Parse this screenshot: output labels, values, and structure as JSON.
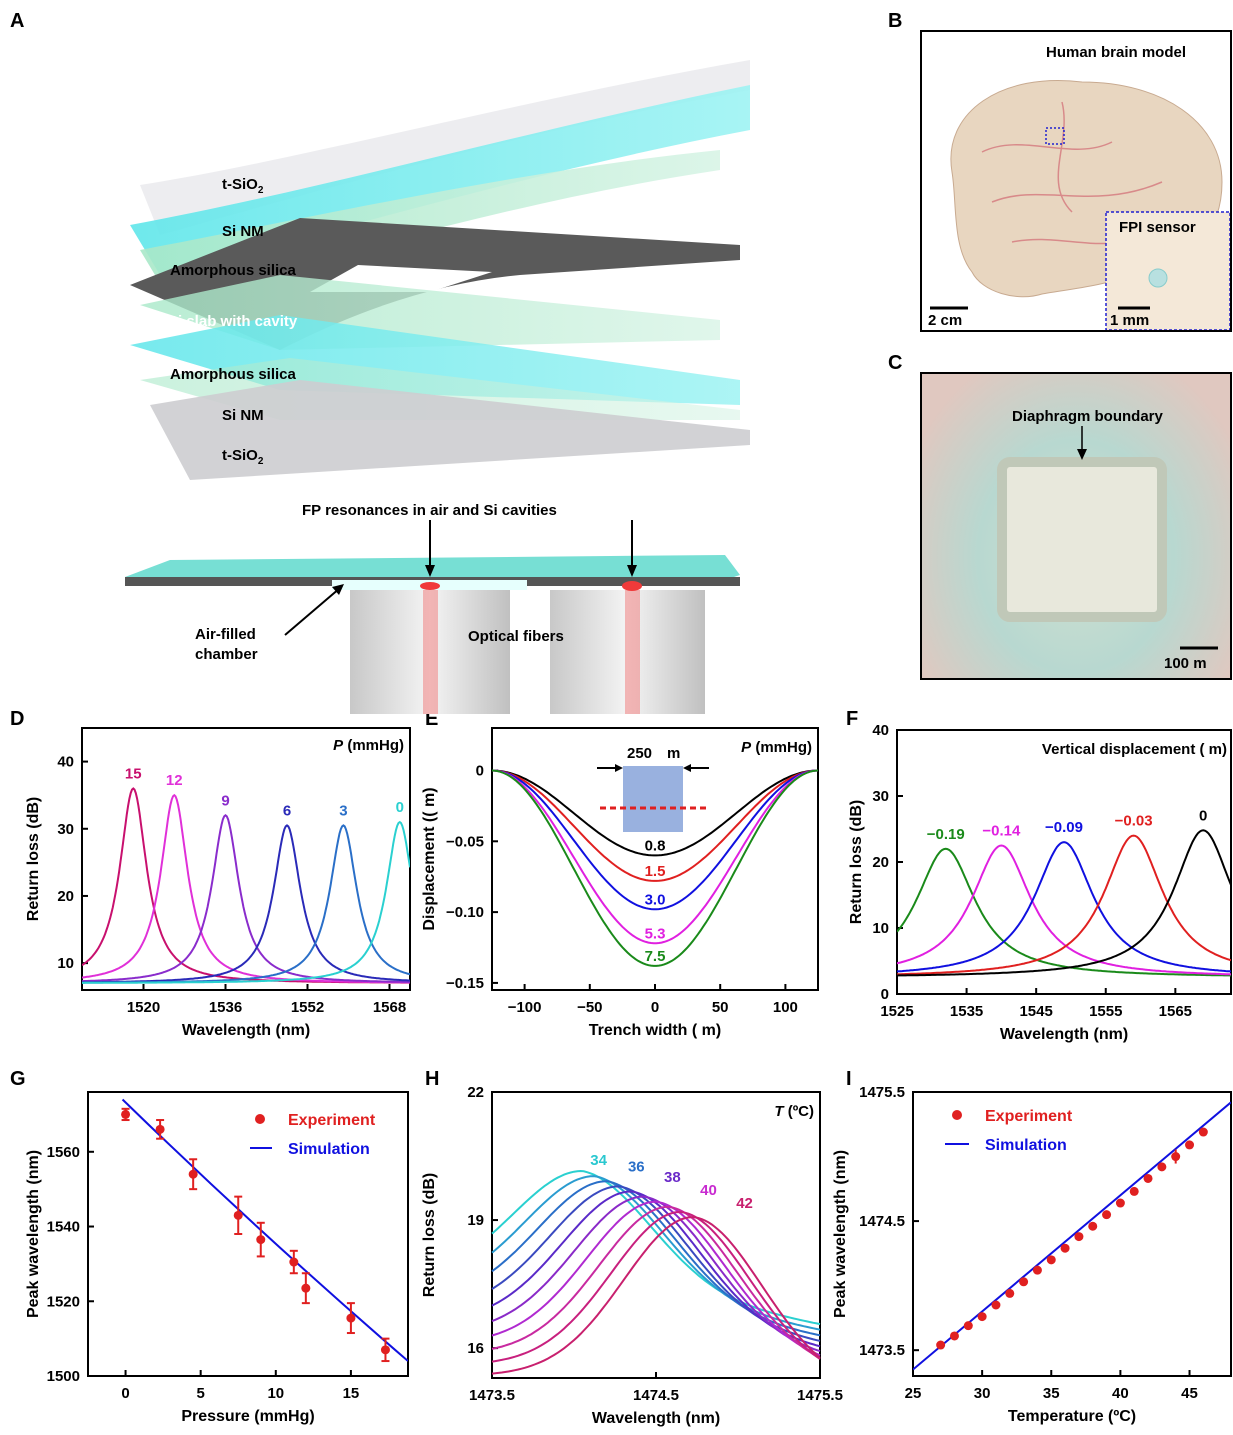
{
  "panels": [
    "A",
    "B",
    "C",
    "D",
    "E",
    "F",
    "G",
    "H",
    "I"
  ],
  "panel_a": {
    "layers": [
      "t-SiO",
      "Si NM",
      "Amorphous silica",
      "Si slab with cavity",
      "Amorphous silica",
      "Si NM",
      "t-SiO"
    ],
    "subscript": "2",
    "fp_label": "FP resonances in air and Si cavities",
    "air_chamber_1": "Air-filled",
    "air_chamber_2": "chamber",
    "fibers": "Optical fibers"
  },
  "panel_b": {
    "title": "Human brain model",
    "inset": "FPI sensor",
    "scale1": "2 cm",
    "scale2": "1 mm"
  },
  "panel_c": {
    "boundary": "Diaphragm boundary",
    "scale": "100   m"
  },
  "chart_data": [
    {
      "panel": "D",
      "type": "line",
      "xlabel": "Wavelength (nm)",
      "ylabel": "Return loss (dB)",
      "xticks": [
        "1520",
        "1536",
        "1552",
        "1568"
      ],
      "yticks": [
        "10",
        "20",
        "30",
        "40"
      ],
      "xlim": [
        1508,
        1572
      ],
      "ylim": [
        6,
        45
      ],
      "legend_title_italic": "P",
      "legend_title_rest": " (mmHg)",
      "series": [
        {
          "name": "15",
          "peak_x": 1518,
          "peak_y": 36,
          "color": "#c8106e"
        },
        {
          "name": "12",
          "peak_x": 1526,
          "peak_y": 35,
          "color": "#e030d8"
        },
        {
          "name": "9",
          "peak_x": 1536,
          "peak_y": 32,
          "color": "#8a2ccc"
        },
        {
          "name": "6",
          "peak_x": 1548,
          "peak_y": 30.5,
          "color": "#2a2ab8"
        },
        {
          "name": "3",
          "peak_x": 1559,
          "peak_y": 30.5,
          "color": "#2a6fc8"
        },
        {
          "name": "0",
          "peak_x": 1570,
          "peak_y": 31,
          "color": "#2ad0d0"
        }
      ]
    },
    {
      "panel": "E",
      "type": "line",
      "xlabel": "Trench width (  m)",
      "ylabel": "Displacement ((  m)",
      "xticks": [
        "−100",
        "−50",
        "0",
        "50",
        "100"
      ],
      "yticks": [
        "0",
        "−0.05",
        "−0.10",
        "−0.15"
      ],
      "xlim": [
        -125,
        125
      ],
      "ylim": [
        -0.155,
        0.03
      ],
      "legend_title_italic": "P",
      "legend_title_rest": " (mmHg)",
      "inset_width": "250",
      "inset_unit": "m",
      "series": [
        {
          "name": "0.8",
          "min": -0.06,
          "color": "#000000"
        },
        {
          "name": "1.5",
          "min": -0.078,
          "color": "#e02020"
        },
        {
          "name": "3.0",
          "min": -0.098,
          "color": "#1010e0"
        },
        {
          "name": "5.3",
          "min": -0.122,
          "color": "#e020e0"
        },
        {
          "name": "7.5",
          "min": -0.138,
          "color": "#1a8a1a"
        }
      ]
    },
    {
      "panel": "F",
      "type": "line",
      "xlabel": "Wavelength (nm)",
      "ylabel": "Return loss (dB)",
      "xticks": [
        "1525",
        "1535",
        "1545",
        "1555",
        "1565"
      ],
      "yticks": [
        "0",
        "10",
        "20",
        "30",
        "40"
      ],
      "xlim": [
        1525,
        1573
      ],
      "ylim": [
        0,
        40
      ],
      "legend_title": "Vertical displacement (  m)",
      "series": [
        {
          "name": "−0.19",
          "peak_x": 1532,
          "peak_y": 22,
          "color": "#1a8a1a"
        },
        {
          "name": "−0.14",
          "peak_x": 1540,
          "peak_y": 22.5,
          "color": "#e020e0"
        },
        {
          "name": "−0.09",
          "peak_x": 1549,
          "peak_y": 23,
          "color": "#1010e0"
        },
        {
          "name": "−0.03",
          "peak_x": 1559,
          "peak_y": 24,
          "color": "#e02020"
        },
        {
          "name": "0",
          "peak_x": 1569,
          "peak_y": 24.8,
          "color": "#000000"
        }
      ]
    },
    {
      "panel": "G",
      "type": "scatter",
      "xlabel": "Pressure (mmHg)",
      "ylabel": "Peak wavelength (nm)",
      "xticks": [
        "0",
        "5",
        "10",
        "15"
      ],
      "yticks": [
        "1500",
        "1520",
        "1540",
        "1560"
      ],
      "xlim": [
        -2.5,
        18.8
      ],
      "ylim": [
        1500,
        1576
      ],
      "legend": [
        "Experiment",
        "Simulation"
      ],
      "experiment": [
        {
          "x": 0,
          "y": 1570,
          "err": 1.5
        },
        {
          "x": 2.3,
          "y": 1566,
          "err": 2.5
        },
        {
          "x": 4.5,
          "y": 1554,
          "err": 4
        },
        {
          "x": 7.5,
          "y": 1543,
          "err": 5
        },
        {
          "x": 9,
          "y": 1536.5,
          "err": 4.5
        },
        {
          "x": 11.2,
          "y": 1530.5,
          "err": 3
        },
        {
          "x": 12,
          "y": 1523.5,
          "err": 4
        },
        {
          "x": 15,
          "y": 1515.5,
          "err": 4
        },
        {
          "x": 17.3,
          "y": 1507,
          "err": 3
        }
      ],
      "simulation": [
        [
          -0.2,
          1574
        ],
        [
          18.8,
          1504
        ]
      ]
    },
    {
      "panel": "H",
      "type": "line",
      "xlabel": "Wavelength (nm)",
      "ylabel": "Return loss (dB)",
      "xticks": [
        "1473.5",
        "1474.5",
        "1475.5"
      ],
      "yticks": [
        "16",
        "19",
        "22"
      ],
      "xlim": [
        1473.5,
        1475.5
      ],
      "ylim": [
        15.3,
        22
      ],
      "legend_title_italic": "T",
      "legend_title_rest": " (ºC)",
      "labels": [
        {
          "name": "34",
          "color": "#2ac8d0"
        },
        {
          "name": "36",
          "color": "#2a6fc8"
        },
        {
          "name": "38",
          "color": "#6a2ac8"
        },
        {
          "name": "40",
          "color": "#c82ad0"
        },
        {
          "name": "42",
          "color": "#c8206e"
        }
      ]
    },
    {
      "panel": "I",
      "type": "scatter",
      "xlabel": "Temperature (ºC)",
      "ylabel": "Peak wavelength (nm)",
      "xticks": [
        "25",
        "30",
        "35",
        "40",
        "45"
      ],
      "yticks": [
        "1473.5",
        "1474.5",
        "1475.5"
      ],
      "xlim": [
        25,
        48
      ],
      "ylim": [
        1473.3,
        1475.5
      ],
      "legend": [
        "Experiment",
        "Simulation"
      ],
      "experiment_x": [
        27,
        28,
        29,
        30,
        31,
        32,
        33,
        34,
        35,
        36,
        37,
        38,
        39,
        40,
        41,
        42,
        43,
        44,
        45,
        46
      ],
      "experiment_y": [
        1473.54,
        1473.61,
        1473.69,
        1473.76,
        1473.85,
        1473.94,
        1474.03,
        1474.12,
        1474.2,
        1474.29,
        1474.38,
        1474.46,
        1474.55,
        1474.64,
        1474.73,
        1474.83,
        1474.92,
        1475.0,
        1475.09,
        1475.19
      ],
      "simulation": [
        [
          25,
          1473.35
        ],
        [
          48,
          1475.42
        ]
      ]
    }
  ]
}
